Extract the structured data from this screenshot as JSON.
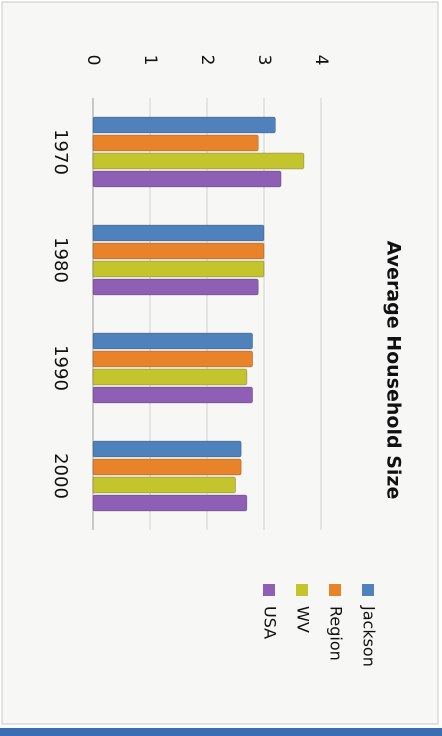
{
  "chart_data": {
    "type": "bar",
    "orientation": "horizontal",
    "title": "Average Household Size",
    "categories": [
      "1970",
      "1980",
      "1990",
      "2000"
    ],
    "series": [
      {
        "name": "Jackson",
        "color": "#4f81bd",
        "values": [
          3.2,
          3.0,
          2.8,
          2.6
        ]
      },
      {
        "name": "Region",
        "color": "#e8832a",
        "values": [
          2.9,
          3.0,
          2.8,
          2.6
        ]
      },
      {
        "name": "WV",
        "color": "#c4c42c",
        "values": [
          3.7,
          3.0,
          2.7,
          2.5
        ]
      },
      {
        "name": "USA",
        "color": "#8e5fb5",
        "values": [
          3.3,
          2.9,
          2.8,
          2.7
        ]
      }
    ],
    "ylim": [
      0,
      4
    ],
    "yticks": [
      0,
      1,
      2,
      3,
      4
    ],
    "grid": true
  }
}
